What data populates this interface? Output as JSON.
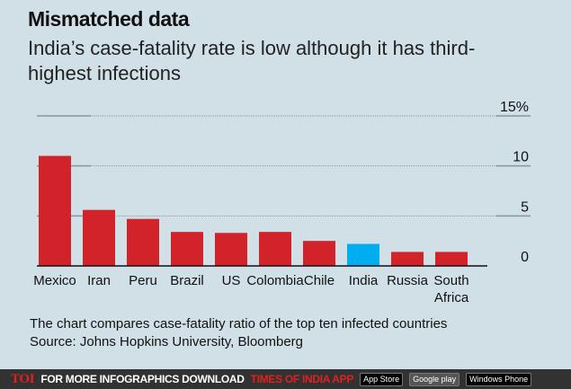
{
  "title": "Mismatched data",
  "subtitle": "India’s case-fatality rate is low although it has third-highest infections",
  "chart_data": {
    "type": "bar",
    "categories": [
      "Mexico",
      "Iran",
      "Peru",
      "Brazil",
      "US",
      "Colombia",
      "Chile",
      "India",
      "Russia",
      "South Africa"
    ],
    "values": [
      11.0,
      5.6,
      4.7,
      3.4,
      3.3,
      3.4,
      2.5,
      2.2,
      1.4,
      1.4
    ],
    "highlight": "India",
    "colors": {
      "default": "#d2222a",
      "highlight": "#00adef"
    },
    "yticks": [
      "0",
      "5",
      "10",
      "15%"
    ],
    "ytick_values": [
      0,
      5,
      10,
      15
    ],
    "ylim": [
      0,
      15
    ],
    "grid": true,
    "xlabel": "",
    "ylabel": ""
  },
  "note": "The chart compares case-fatality ratio of the top ten infected countries",
  "source": "Source: Johns Hopkins University, Bloomberg",
  "footer": {
    "logo": "TOI",
    "text": "FOR MORE  INFOGRAPHICS DOWNLOAD",
    "app": "TIMES OF INDIA  APP",
    "app_store": "App Store",
    "google_play": "Google play",
    "windows": "Windows Phone"
  }
}
